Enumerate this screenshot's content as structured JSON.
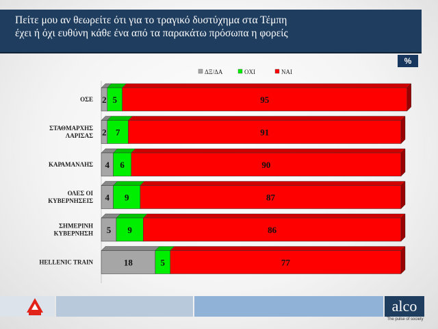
{
  "header": {
    "title_line1": "Πείτε μου αν θεωρείτε ότι για το τραγικό δυστύχημα στα Τέμπη",
    "title_line2": "έχει ή όχι ευθύνη κάθε ένα από τα παρακάτω πρόσωπα η φορείς"
  },
  "badge": {
    "unit": "%"
  },
  "footer": {
    "brand": "alco",
    "tagline": "The pulse of society",
    "left_logo": "alpha-news-logo"
  },
  "colors": {
    "header_bg": "#1f3d5f",
    "dk_na": "#a6a6a6",
    "no": "#00ee00",
    "yes": "#ff0000"
  },
  "chart_data": {
    "type": "bar",
    "orientation": "horizontal",
    "stacked": true,
    "categories": [
      [
        "ΟΣΕ"
      ],
      [
        "ΣΤΑΘΜΑΡΧΗΣ",
        "ΛΑΡΙΣΑΣ"
      ],
      [
        "ΚΑΡΑΜΑΝΛΗΣ"
      ],
      [
        "ΟΛΕΣ ΟΙ",
        "ΚΥΒΕΡΝΗΣΕΙΣ"
      ],
      [
        "ΣΗΜΕΡΙΝΗ",
        "ΚΥΒΕΡΝΗΣΗ"
      ],
      [
        "HELLENIC TRAIN"
      ]
    ],
    "series": [
      {
        "name": "ΔΞ/ΔΑ",
        "color": "#a6a6a6",
        "values": [
          2,
          2,
          4,
          4,
          5,
          18
        ]
      },
      {
        "name": "ΟΧΙ",
        "color": "#00ee00",
        "values": [
          5,
          7,
          6,
          9,
          9,
          5
        ]
      },
      {
        "name": "ΝΑΙ",
        "color": "#ff0000",
        "values": [
          95,
          91,
          90,
          87,
          86,
          77
        ]
      }
    ],
    "xlim": [
      0,
      100
    ],
    "legend_position": "top",
    "data_labels": true,
    "grid": false
  }
}
